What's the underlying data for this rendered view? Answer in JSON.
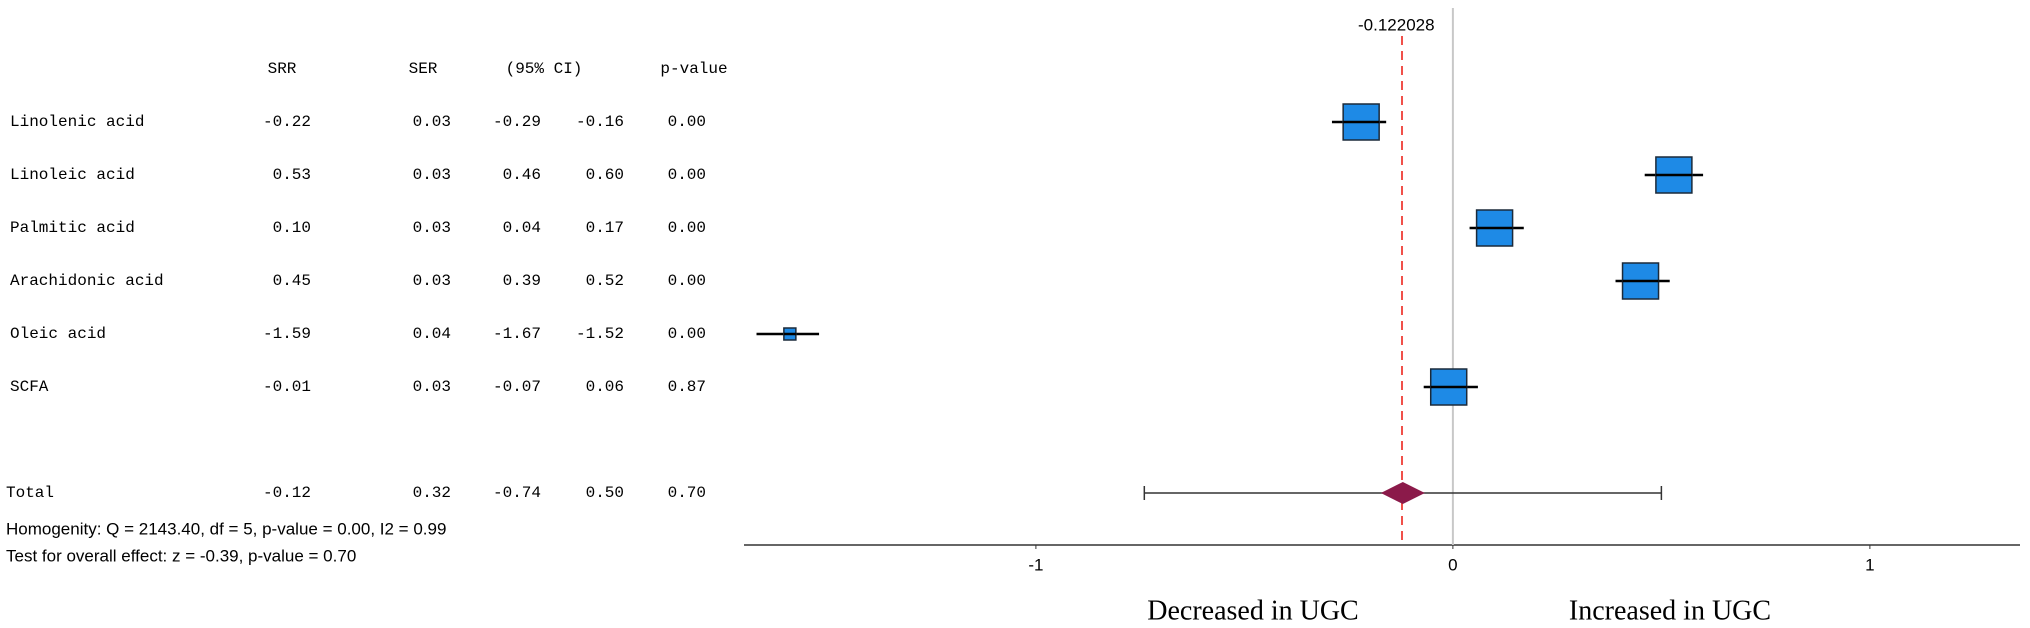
{
  "chart_data": {
    "type": "forest",
    "columns": [
      "SRR",
      "SER",
      "(95% CI)",
      "p-value"
    ],
    "categories": [
      "Linolenic acid",
      "Linoleic acid",
      "Palmitic acid",
      "Arachidonic acid",
      "Oleic acid",
      "SCFA"
    ],
    "values": [
      -0.22,
      0.53,
      0.1,
      0.45,
      -1.59,
      -0.01
    ],
    "value_labels": [
      "-0.22",
      "0.53",
      "0.10",
      "0.45",
      "-1.59",
      "-0.01"
    ],
    "se": [
      0.03,
      0.03,
      0.03,
      0.03,
      0.04,
      0.03
    ],
    "ci_low": [
      -0.29,
      0.46,
      0.04,
      0.39,
      -1.67,
      -0.07
    ],
    "ci_high": [
      -0.16,
      0.6,
      0.17,
      0.52,
      -1.52,
      0.06
    ],
    "ci_high_labels": [
      "-0.16",
      "0.60",
      "0.17",
      "0.52",
      "-1.52",
      "0.06"
    ],
    "p": [
      0,
      0,
      0,
      0,
      0,
      0.87
    ],
    "p_labels": [
      "0.00",
      "0.00",
      "0.00",
      "0.00",
      "0.00",
      "0.87"
    ],
    "color": "#1e8ae6",
    "total": {
      "label": "Total",
      "value": -0.12,
      "se": 0.32,
      "ci_low": -0.74,
      "ci_high": 0.5,
      "ci_high_label": "0.50",
      "p": 0.7,
      "p_label": "0.70",
      "color": "#8b1a4a"
    },
    "notes": [
      "Homogenity: Q = 2143.40, df = 5, p-value = 0.00, I2 = 0.99",
      "Test for overall effect: z = -0.39, p-value = 0.70"
    ],
    "reference": -0.122028,
    "reference_color": "#f0504a",
    "xlim": [
      -1.7,
      1.36
    ],
    "xticks": [
      -1,
      0,
      1
    ],
    "left_label": "Decreased in UGC",
    "right_label": "Increased in UGC"
  }
}
